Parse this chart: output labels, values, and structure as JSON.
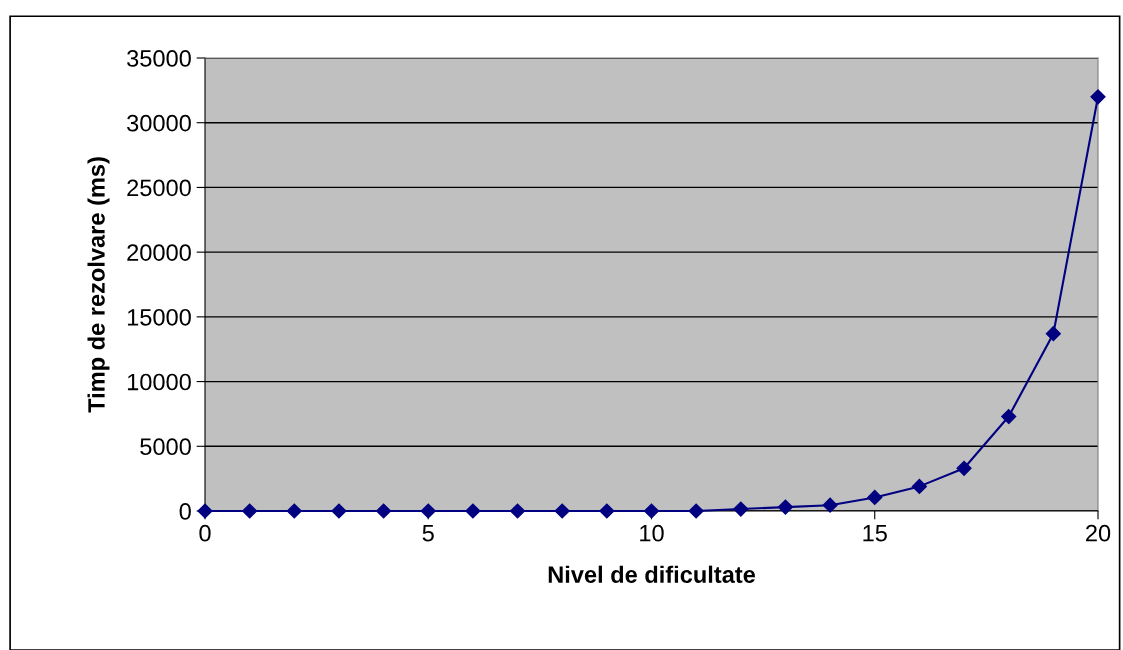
{
  "chart_data": {
    "type": "line",
    "xlabel": "Nivel de dificultate",
    "ylabel": "Timp de rezolvare (ms)",
    "x": [
      0,
      1,
      2,
      3,
      4,
      5,
      6,
      7,
      8,
      9,
      10,
      11,
      12,
      13,
      14,
      15,
      16,
      17,
      18,
      19,
      20
    ],
    "series": [
      {
        "color": "#000080",
        "values": [
          0,
          0,
          0,
          0,
          0,
          0,
          0,
          0,
          0,
          0,
          0,
          0,
          150,
          300,
          450,
          1050,
          1900,
          3300,
          7300,
          13700,
          32000
        ]
      }
    ],
    "xlim": [
      0,
      20
    ],
    "xticks": [
      0,
      5,
      10,
      15,
      20
    ],
    "ylim": [
      0,
      35000
    ],
    "yticks": [
      0,
      5000,
      10000,
      15000,
      20000,
      25000,
      30000,
      35000
    ],
    "grid": "y",
    "marker": "diamond",
    "line_style": "solid",
    "legend": false
  }
}
